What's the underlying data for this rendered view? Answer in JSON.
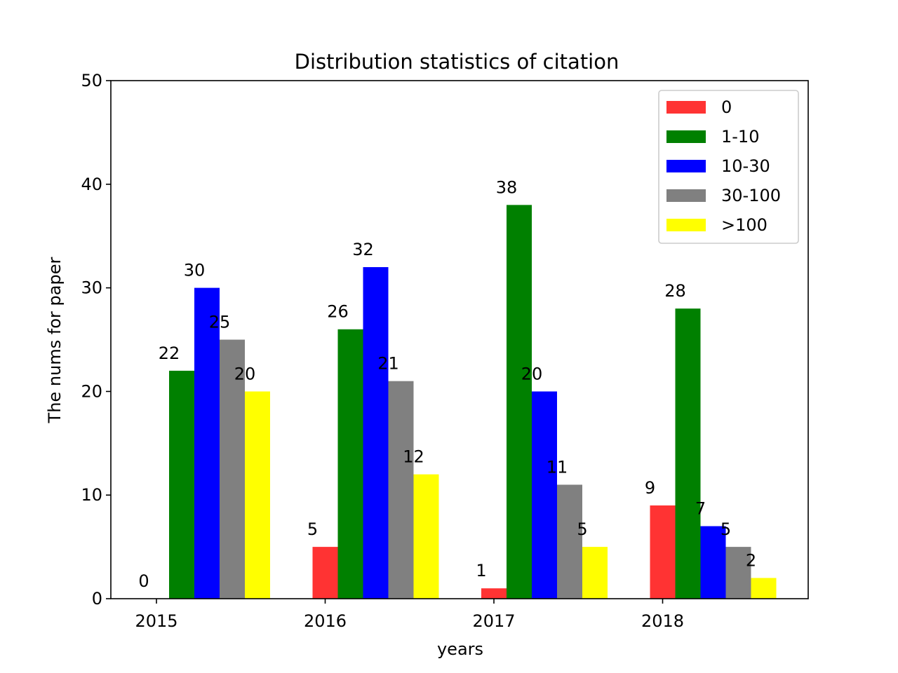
{
  "chart_data": {
    "type": "bar",
    "title": "Distribution statistics of citation",
    "xlabel": "years",
    "ylabel": "The nums for paper",
    "categories": [
      "2015",
      "2016",
      "2017",
      "2018"
    ],
    "series": [
      {
        "name": "0",
        "color": "#ff3333",
        "values": [
          0,
          5,
          1,
          9
        ]
      },
      {
        "name": "1-10",
        "color": "#008000",
        "values": [
          22,
          26,
          38,
          28
        ]
      },
      {
        "name": "10-30",
        "color": "#0000ff",
        "values": [
          30,
          32,
          20,
          7
        ]
      },
      {
        "name": "30-100",
        "color": "#808080",
        "values": [
          25,
          21,
          11,
          5
        ]
      },
      {
        "name": ">100",
        "color": "#ffff00",
        "values": [
          20,
          12,
          5,
          2
        ]
      }
    ],
    "ylim": [
      0,
      50
    ],
    "yticks": [
      "0",
      "10",
      "20",
      "30",
      "40",
      "50"
    ],
    "grid": false,
    "legend_position": "top-right"
  }
}
